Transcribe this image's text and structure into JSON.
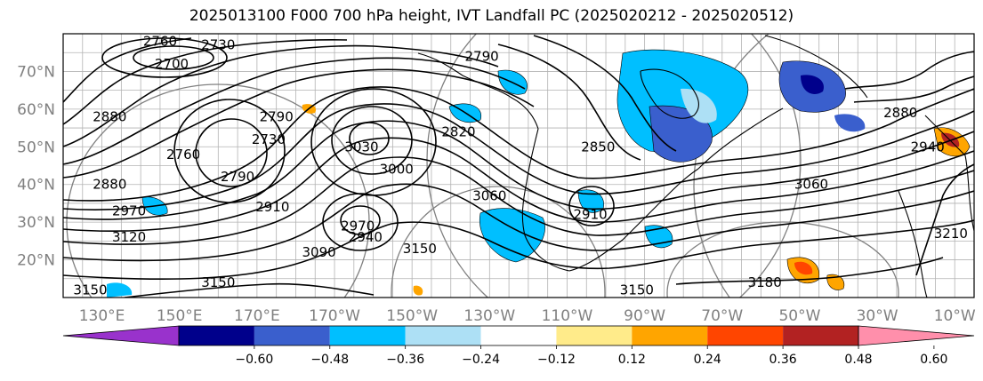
{
  "title": "2025013100 F000 700 hPa height, IVT Landfall PC (2025020212 - 2025020512)",
  "map": {
    "projection": "plate-carree",
    "lon_range": [
      120,
      355
    ],
    "lat_range": [
      10,
      80
    ],
    "grid": true,
    "lon_ticks": [
      {
        "lon": 130,
        "label": "130°E"
      },
      {
        "lon": 150,
        "label": "150°E"
      },
      {
        "lon": 170,
        "label": "170°E"
      },
      {
        "lon": 190,
        "label": "170°W"
      },
      {
        "lon": 210,
        "label": "150°W"
      },
      {
        "lon": 230,
        "label": "130°W"
      },
      {
        "lon": 250,
        "label": "110°W"
      },
      {
        "lon": 270,
        "label": "90°W"
      },
      {
        "lon": 290,
        "label": "70°W"
      },
      {
        "lon": 310,
        "label": "50°W"
      },
      {
        "lon": 330,
        "label": "30°W"
      },
      {
        "lon": 350,
        "label": "10°W"
      }
    ],
    "lat_ticks": [
      {
        "lat": 70,
        "label": "70°N"
      },
      {
        "lat": 60,
        "label": "60°N"
      },
      {
        "lat": 50,
        "label": "50°N"
      },
      {
        "lat": 40,
        "label": "40°N"
      },
      {
        "lat": 30,
        "label": "30°N"
      },
      {
        "lat": 20,
        "label": "20°N"
      }
    ],
    "contour_labels": [
      {
        "text": "2760",
        "lon": 145,
        "lat": 78
      },
      {
        "text": "2730",
        "lon": 160,
        "lat": 77
      },
      {
        "text": "2700",
        "lon": 148,
        "lat": 72
      },
      {
        "text": "2880",
        "lon": 132,
        "lat": 58
      },
      {
        "text": "2790",
        "lon": 175,
        "lat": 58
      },
      {
        "text": "2730",
        "lon": 173,
        "lat": 52
      },
      {
        "text": "2760",
        "lon": 151,
        "lat": 48
      },
      {
        "text": "2790",
        "lon": 165,
        "lat": 42
      },
      {
        "text": "3030",
        "lon": 197,
        "lat": 50
      },
      {
        "text": "3000",
        "lon": 206,
        "lat": 44
      },
      {
        "text": "2820",
        "lon": 222,
        "lat": 54
      },
      {
        "text": "2790",
        "lon": 228,
        "lat": 74
      },
      {
        "text": "2910",
        "lon": 174,
        "lat": 34
      },
      {
        "text": "2880",
        "lon": 132,
        "lat": 40
      },
      {
        "text": "2970",
        "lon": 137,
        "lat": 33
      },
      {
        "text": "3120",
        "lon": 137,
        "lat": 26
      },
      {
        "text": "2970",
        "lon": 196,
        "lat": 29
      },
      {
        "text": "2940",
        "lon": 198,
        "lat": 26
      },
      {
        "text": "3090",
        "lon": 186,
        "lat": 22
      },
      {
        "text": "3150",
        "lon": 212,
        "lat": 23
      },
      {
        "text": "3150",
        "lon": 160,
        "lat": 14
      },
      {
        "text": "3150",
        "lon": 127,
        "lat": 12
      },
      {
        "text": "3060",
        "lon": 230,
        "lat": 37
      },
      {
        "text": "2910",
        "lon": 256,
        "lat": 32
      },
      {
        "text": "2850",
        "lon": 258,
        "lat": 50
      },
      {
        "text": "3060",
        "lon": 313,
        "lat": 40
      },
      {
        "text": "2940",
        "lon": 343,
        "lat": 50
      },
      {
        "text": "2880",
        "lon": 336,
        "lat": 59
      },
      {
        "text": "3210",
        "lon": 349,
        "lat": 27
      },
      {
        "text": "3180",
        "lon": 301,
        "lat": 14
      },
      {
        "text": "3150",
        "lon": 268,
        "lat": 12
      }
    ]
  },
  "colorbar": {
    "colors": [
      "#9932CC",
      "#00008B",
      "#3A5FCD",
      "#00BFFF",
      "#ADE0F5",
      "#FFFFFF",
      "#FFEB8A",
      "#FFA500",
      "#FF4500",
      "#B22222",
      "#FF8FAB"
    ],
    "ticks": [
      "−0.60",
      "−0.48",
      "−0.36",
      "−0.24",
      "−0.12",
      "0.12",
      "0.24",
      "0.36",
      "0.48",
      "0.60"
    ],
    "extend": "both"
  }
}
